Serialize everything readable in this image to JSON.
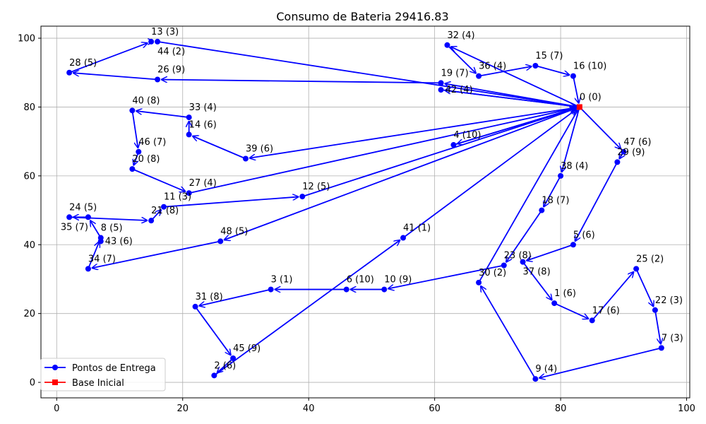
{
  "chart_data": {
    "type": "line",
    "title": "Consumo de Bateria 29416.83",
    "xlabel": "",
    "ylabel": "",
    "xlim": [
      -2.5,
      100.5
    ],
    "ylim": [
      -4.5,
      103.5
    ],
    "xticks": [
      0,
      20,
      40,
      60,
      80,
      100
    ],
    "yticks": [
      0,
      20,
      40,
      60,
      80,
      100
    ],
    "grid": true,
    "legend_position": "lower-left",
    "colors": {
      "route": "#0000ff",
      "base": "#ff0000",
      "leader": "#ff0000"
    },
    "legend": [
      {
        "label": "Pontos de Entrega",
        "marker": "circle",
        "color": "#0000ff"
      },
      {
        "label": "Base Inicial",
        "marker": "square",
        "color": "#ff0000"
      }
    ],
    "points": [
      {
        "id": 0,
        "x": 83,
        "y": 80,
        "label": "0 (0)"
      },
      {
        "id": 1,
        "x": 79,
        "y": 23,
        "label": "1 (6)"
      },
      {
        "id": 2,
        "x": 25,
        "y": 2,
        "label": "2 (6)"
      },
      {
        "id": 3,
        "x": 34,
        "y": 27,
        "label": "3 (1)"
      },
      {
        "id": 4,
        "x": 63,
        "y": 69,
        "label": "4 (10)"
      },
      {
        "id": 5,
        "x": 82,
        "y": 40,
        "label": "5 (6)"
      },
      {
        "id": 6,
        "x": 46,
        "y": 27,
        "label": "6 (10)"
      },
      {
        "id": 7,
        "x": 96,
        "y": 10,
        "label": "7 (3)"
      },
      {
        "id": 8,
        "x": 7,
        "y": 42,
        "label": "8 (5)"
      },
      {
        "id": 9,
        "x": 76,
        "y": 1,
        "label": "9 (4)"
      },
      {
        "id": 10,
        "x": 52,
        "y": 27,
        "label": "10 (9)"
      },
      {
        "id": 11,
        "x": 17,
        "y": 51,
        "label": "11 (3)"
      },
      {
        "id": 12,
        "x": 39,
        "y": 54,
        "label": "12 (5)"
      },
      {
        "id": 13,
        "x": 15,
        "y": 99,
        "label": "13 (3)"
      },
      {
        "id": 14,
        "x": 21,
        "y": 72,
        "label": "14 (6)"
      },
      {
        "id": 15,
        "x": 76,
        "y": 92,
        "label": "15 (7)"
      },
      {
        "id": 16,
        "x": 82,
        "y": 89,
        "label": "16 (10)"
      },
      {
        "id": 17,
        "x": 85,
        "y": 18,
        "label": "17 (6)"
      },
      {
        "id": 18,
        "x": 77,
        "y": 50,
        "label": "18 (7)"
      },
      {
        "id": 19,
        "x": 61,
        "y": 87,
        "label": "19 (7)"
      },
      {
        "id": 20,
        "x": 12,
        "y": 62,
        "label": "20 (8)"
      },
      {
        "id": 21,
        "x": 15,
        "y": 47,
        "label": "21 (8)"
      },
      {
        "id": 22,
        "x": 95,
        "y": 21,
        "label": "22 (3)"
      },
      {
        "id": 23,
        "x": 71,
        "y": 34,
        "label": "23 (8)"
      },
      {
        "id": 24,
        "x": 2,
        "y": 48,
        "label": "24 (5)"
      },
      {
        "id": 25,
        "x": 92,
        "y": 33,
        "label": "25 (2)"
      },
      {
        "id": 26,
        "x": 16,
        "y": 88,
        "label": "26 (9)"
      },
      {
        "id": 27,
        "x": 21,
        "y": 55,
        "label": "27 (4)"
      },
      {
        "id": 28,
        "x": 2,
        "y": 90,
        "label": "28 (5)"
      },
      {
        "id": 29,
        "x": 89,
        "y": 64,
        "label": "29 (9)"
      },
      {
        "id": 30,
        "x": 67,
        "y": 29,
        "label": "30 (2)"
      },
      {
        "id": 31,
        "x": 22,
        "y": 22,
        "label": "31 (8)"
      },
      {
        "id": 32,
        "x": 62,
        "y": 98,
        "label": "32 (4)"
      },
      {
        "id": 33,
        "x": 21,
        "y": 77,
        "label": "33 (4)"
      },
      {
        "id": 34,
        "x": 5,
        "y": 33,
        "label": "34 (7)"
      },
      {
        "id": 35,
        "x": 5,
        "y": 48,
        "label": "35 (7)"
      },
      {
        "id": 36,
        "x": 67,
        "y": 89,
        "label": "36 (4)"
      },
      {
        "id": 37,
        "x": 74,
        "y": 35,
        "label": "37 (8)"
      },
      {
        "id": 38,
        "x": 80,
        "y": 60,
        "label": "38 (4)"
      },
      {
        "id": 39,
        "x": 30,
        "y": 65,
        "label": "39 (6)"
      },
      {
        "id": 40,
        "x": 12,
        "y": 79,
        "label": "40 (8)"
      },
      {
        "id": 41,
        "x": 55,
        "y": 42,
        "label": "41 (1)"
      },
      {
        "id": 42,
        "x": 61,
        "y": 85,
        "label": "42 (4)"
      },
      {
        "id": 43,
        "x": 7,
        "y": 41,
        "label": "43 (6)"
      },
      {
        "id": 44,
        "x": 16,
        "y": 99,
        "label": "44 (2)"
      },
      {
        "id": 45,
        "x": 28,
        "y": 7,
        "label": "45 (9)"
      },
      {
        "id": 46,
        "x": 13,
        "y": 67,
        "label": "46 (7)"
      },
      {
        "id": 47,
        "x": 90,
        "y": 67,
        "label": "47 (6)"
      },
      {
        "id": 48,
        "x": 26,
        "y": 41,
        "label": "48 (5)"
      }
    ],
    "routes": [
      [
        0,
        32,
        36,
        15,
        16,
        0
      ],
      [
        0,
        42,
        0
      ],
      [
        0,
        19,
        26,
        28,
        13,
        44,
        0
      ],
      [
        0,
        4,
        0
      ],
      [
        0,
        39,
        14,
        33,
        40,
        46,
        20,
        27,
        0
      ],
      [
        0,
        38,
        18,
        23,
        10,
        6,
        3,
        31,
        45,
        2,
        41,
        0
      ],
      [
        0,
        47,
        29,
        5,
        37,
        1,
        17,
        25,
        22,
        7,
        9,
        30,
        0
      ],
      [
        0,
        48,
        34,
        8,
        35,
        24,
        21,
        11,
        12,
        0
      ]
    ]
  }
}
